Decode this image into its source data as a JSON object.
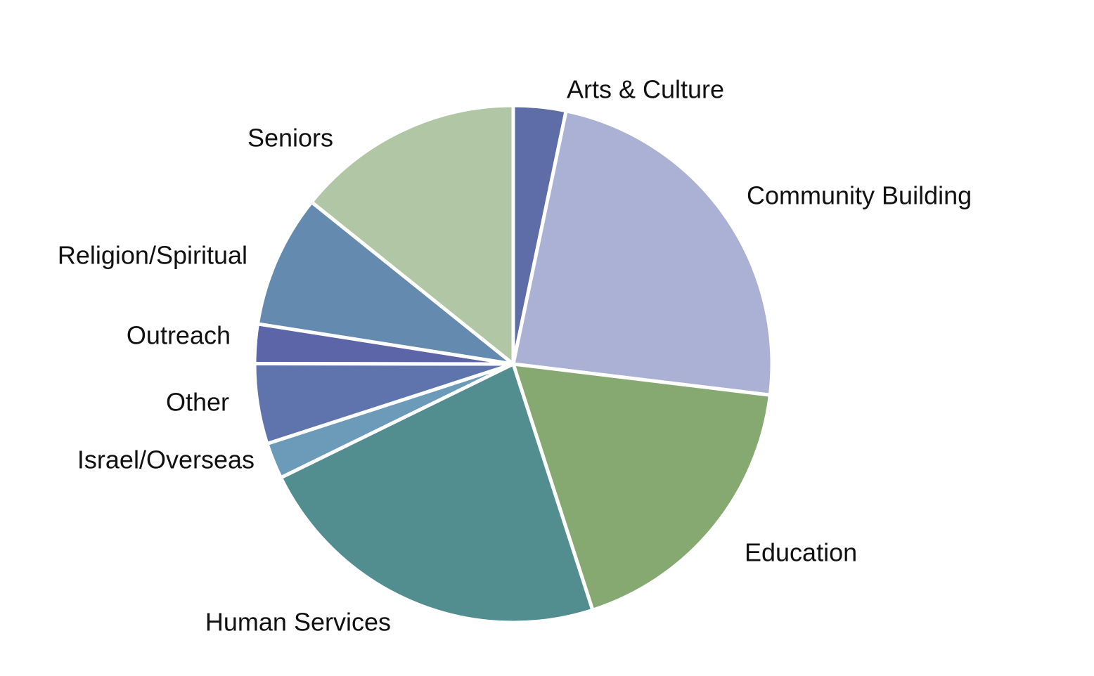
{
  "chart_data": {
    "type": "pie",
    "title": "",
    "start_angle_deg": 0,
    "direction": "clockwise",
    "categories": [
      "Arts & Culture",
      "Community Building",
      "Education",
      "Human Services",
      "Israel/Overseas",
      "Other",
      "Outreach",
      "Religion/Spiritual",
      "Seniors"
    ],
    "values": [
      3.2,
      23.1,
      17.7,
      22.2,
      2.2,
      4.9,
      2.4,
      8.1,
      13.9
    ],
    "unit": "%",
    "colors": [
      "#5e6da8",
      "#abb1d4",
      "#86a971",
      "#528e8f",
      "#6b9bb8",
      "#5f74ac",
      "#5b65a8",
      "#648ab0",
      "#b1c6a5"
    ],
    "legend": "none",
    "labels_outside": true
  }
}
